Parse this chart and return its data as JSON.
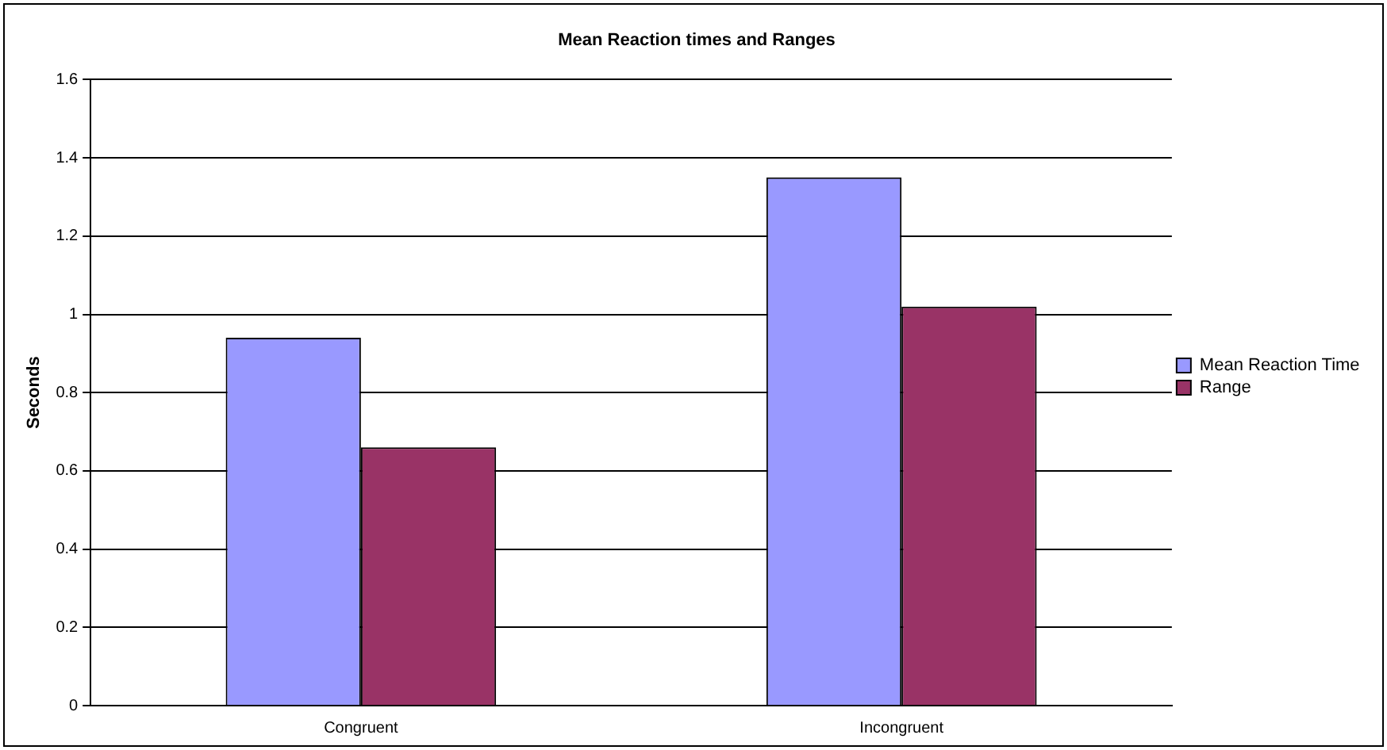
{
  "chart_data": {
    "type": "bar",
    "title": "Mean Reaction times and Ranges",
    "ylabel": "Seconds",
    "categories": [
      "Congruent",
      "Incongruent"
    ],
    "series": [
      {
        "name": "Mean Reaction Time",
        "color": "#9999ff",
        "values": [
          0.94,
          1.35
        ]
      },
      {
        "name": "Range",
        "color": "#993366",
        "values": [
          0.66,
          1.02
        ]
      }
    ],
    "ylim": [
      0,
      1.6
    ],
    "yticks": [
      0,
      0.2,
      0.4,
      0.6,
      0.8,
      1,
      1.2,
      1.4,
      1.6
    ],
    "grid": "y",
    "legend": "right"
  }
}
